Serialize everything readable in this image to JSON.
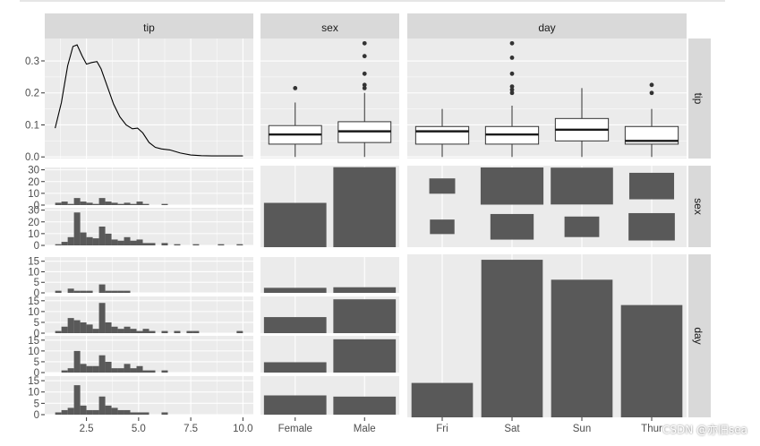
{
  "chart_data": {
    "type": "pairs (ggpairs)",
    "columns": [
      "tip",
      "sex",
      "day"
    ],
    "strip_labels": [
      "tip",
      "sex",
      "day"
    ],
    "tip_axis": {
      "ticks": [
        2.5,
        5.0,
        7.5,
        10.0
      ],
      "tick_labels": [
        "2.5",
        "5.0",
        "7.5",
        "10.0"
      ],
      "range": [
        0.5,
        10.5
      ]
    },
    "sex_levels": [
      "Female",
      "Male"
    ],
    "day_levels": [
      "Fri",
      "Sat",
      "Sun",
      "Thur"
    ],
    "density": {
      "y_ticks": [
        0.0,
        0.1,
        0.2,
        0.3
      ],
      "y_tick_labels": [
        "0.0",
        "0.1",
        "0.2",
        "0.3"
      ],
      "ylim": [
        -0.005,
        0.37
      ],
      "x": [
        1.0,
        1.3,
        1.6,
        1.85,
        2.05,
        2.3,
        2.5,
        2.75,
        3.0,
        3.2,
        3.5,
        3.8,
        4.1,
        4.4,
        4.7,
        4.95,
        5.2,
        5.5,
        5.8,
        6.1,
        6.5,
        7.0,
        7.5,
        8.0,
        8.5,
        9.0,
        9.5,
        10.0
      ],
      "y": [
        0.09,
        0.17,
        0.285,
        0.345,
        0.35,
        0.315,
        0.29,
        0.295,
        0.298,
        0.275,
        0.22,
        0.165,
        0.125,
        0.1,
        0.088,
        0.09,
        0.075,
        0.045,
        0.03,
        0.025,
        0.022,
        0.012,
        0.006,
        0.004,
        0.003,
        0.003,
        0.003,
        0.003
      ]
    },
    "ratio_box_by_sex": [
      {
        "group": "Female",
        "min": 0.0,
        "q1": 0.04,
        "median": 0.07,
        "q3": 0.098,
        "max": 0.17,
        "outliers": [
          0.215
        ]
      },
      {
        "group": "Male",
        "min": 0.0,
        "q1": 0.045,
        "median": 0.08,
        "q3": 0.11,
        "max": 0.2,
        "outliers": [
          0.215,
          0.225,
          0.26,
          0.315,
          0.355
        ]
      }
    ],
    "ratio_box_by_day": [
      {
        "group": "Fri",
        "min": 0.0,
        "q1": 0.04,
        "median": 0.08,
        "q3": 0.095,
        "max": 0.15,
        "outliers": []
      },
      {
        "group": "Sat",
        "min": 0.0,
        "q1": 0.04,
        "median": 0.07,
        "q3": 0.095,
        "max": 0.16,
        "outliers": [
          0.2,
          0.21,
          0.22,
          0.26,
          0.31,
          0.355
        ]
      },
      {
        "group": "Sun",
        "min": 0.0,
        "q1": 0.05,
        "median": 0.085,
        "q3": 0.12,
        "max": 0.215,
        "outliers": []
      },
      {
        "group": "Thur",
        "min": 0.0,
        "q1": 0.04,
        "median": 0.05,
        "q3": 0.095,
        "max": 0.15,
        "outliers": [
          0.2,
          0.225
        ]
      }
    ],
    "hist_y_ticks_sex": [
      0,
      10,
      20,
      30
    ],
    "hist_y_ticks_day": [
      0,
      5,
      10,
      15
    ],
    "hist_sex": {
      "bin_start": 1.0,
      "bin_width": 0.3,
      "Female": [
        2,
        3,
        1,
        6,
        3,
        2,
        1,
        6,
        3,
        2,
        1,
        2,
        1,
        3,
        1,
        0,
        0,
        1,
        0,
        0,
        0,
        0,
        0,
        0,
        0,
        0,
        0,
        0,
        0,
        0
      ],
      "Male": [
        1,
        3,
        7,
        28,
        11,
        7,
        6,
        16,
        10,
        5,
        4,
        7,
        4,
        5,
        2,
        2,
        0,
        2,
        0,
        1,
        0,
        0,
        1,
        0,
        0,
        0,
        1,
        0,
        0,
        1
      ]
    },
    "hist_day": {
      "bin_start": 1.0,
      "bin_width": 0.3,
      "Fri": [
        1,
        0,
        2,
        1,
        1,
        1,
        0,
        4,
        1,
        1,
        1,
        1,
        0,
        0,
        0,
        0,
        0,
        0,
        0,
        0,
        0,
        0,
        0,
        0,
        0,
        0,
        0,
        0,
        0,
        0
      ],
      "Sat": [
        1,
        3,
        7,
        6,
        5,
        4,
        2,
        14,
        5,
        3,
        2,
        3,
        2,
        1,
        2,
        1,
        0,
        1,
        0,
        1,
        0,
        1,
        1,
        0,
        0,
        0,
        0,
        0,
        0,
        1
      ],
      "Sun": [
        0,
        1,
        2,
        10,
        4,
        3,
        3,
        8,
        5,
        2,
        2,
        4,
        2,
        3,
        1,
        1,
        0,
        1,
        0,
        0,
        0,
        0,
        0,
        0,
        0,
        0,
        0,
        0,
        0,
        0
      ],
      "Thur": [
        1,
        2,
        3,
        13,
        4,
        2,
        2,
        8,
        4,
        3,
        2,
        2,
        1,
        1,
        1,
        0,
        0,
        1,
        0,
        0,
        0,
        0,
        0,
        0,
        0,
        0,
        0,
        0,
        0,
        0
      ]
    },
    "sex_counts": {
      "Female": 87,
      "Male": 157,
      "ylim": [
        0,
        160
      ]
    },
    "sex_by_day_counts": {
      "Female": {
        "Fri": 9,
        "Sat": 28,
        "Sun": 18,
        "Thur": 32
      },
      "Male": {
        "Fri": 10,
        "Sat": 59,
        "Sun": 58,
        "Thur": 30
      }
    },
    "day_by_sex_counts": {
      "Fri": {
        "Female": 9,
        "Male": 10
      },
      "Sat": {
        "Female": 28,
        "Male": 59
      },
      "Sun": {
        "Female": 18,
        "Male": 58
      },
      "Thur": {
        "Female": 32,
        "Male": 30
      }
    },
    "day_counts": {
      "Fri": 19,
      "Sat": 87,
      "Sun": 76,
      "Thur": 62,
      "ylim": [
        0,
        90
      ]
    }
  },
  "watermark": "CSDN @亦旧sea"
}
